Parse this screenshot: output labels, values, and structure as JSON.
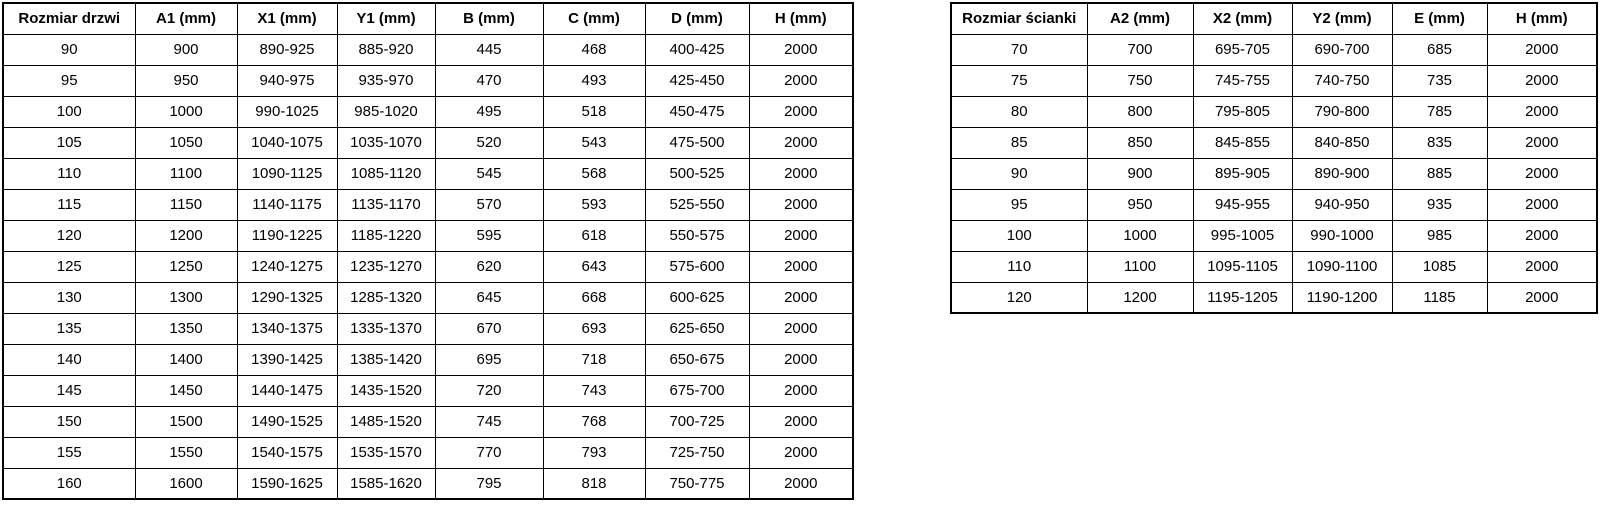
{
  "tables": {
    "doors": {
      "headers": [
        "Rozmiar drzwi",
        "A1 (mm)",
        "X1 (mm)",
        "Y1 (mm)",
        "B (mm)",
        "C (mm)",
        "D (mm)",
        "H (mm)"
      ],
      "rows": [
        [
          "90",
          "900",
          "890-925",
          "885-920",
          "445",
          "468",
          "400-425",
          "2000"
        ],
        [
          "95",
          "950",
          "940-975",
          "935-970",
          "470",
          "493",
          "425-450",
          "2000"
        ],
        [
          "100",
          "1000",
          "990-1025",
          "985-1020",
          "495",
          "518",
          "450-475",
          "2000"
        ],
        [
          "105",
          "1050",
          "1040-1075",
          "1035-1070",
          "520",
          "543",
          "475-500",
          "2000"
        ],
        [
          "110",
          "1100",
          "1090-1125",
          "1085-1120",
          "545",
          "568",
          "500-525",
          "2000"
        ],
        [
          "115",
          "1150",
          "1140-1175",
          "1135-1170",
          "570",
          "593",
          "525-550",
          "2000"
        ],
        [
          "120",
          "1200",
          "1190-1225",
          "1185-1220",
          "595",
          "618",
          "550-575",
          "2000"
        ],
        [
          "125",
          "1250",
          "1240-1275",
          "1235-1270",
          "620",
          "643",
          "575-600",
          "2000"
        ],
        [
          "130",
          "1300",
          "1290-1325",
          "1285-1320",
          "645",
          "668",
          "600-625",
          "2000"
        ],
        [
          "135",
          "1350",
          "1340-1375",
          "1335-1370",
          "670",
          "693",
          "625-650",
          "2000"
        ],
        [
          "140",
          "1400",
          "1390-1425",
          "1385-1420",
          "695",
          "718",
          "650-675",
          "2000"
        ],
        [
          "145",
          "1450",
          "1440-1475",
          "1435-1520",
          "720",
          "743",
          "675-700",
          "2000"
        ],
        [
          "150",
          "1500",
          "1490-1525",
          "1485-1520",
          "745",
          "768",
          "700-725",
          "2000"
        ],
        [
          "155",
          "1550",
          "1540-1575",
          "1535-1570",
          "770",
          "793",
          "725-750",
          "2000"
        ],
        [
          "160",
          "1600",
          "1590-1625",
          "1585-1620",
          "795",
          "818",
          "750-775",
          "2000"
        ]
      ]
    },
    "walls": {
      "headers": [
        "Rozmiar ścianki",
        "A2 (mm)",
        "X2 (mm)",
        "Y2 (mm)",
        "E (mm)",
        "H (mm)"
      ],
      "rows": [
        [
          "70",
          "700",
          "695-705",
          "690-700",
          "685",
          "2000"
        ],
        [
          "75",
          "750",
          "745-755",
          "740-750",
          "735",
          "2000"
        ],
        [
          "80",
          "800",
          "795-805",
          "790-800",
          "785",
          "2000"
        ],
        [
          "85",
          "850",
          "845-855",
          "840-850",
          "835",
          "2000"
        ],
        [
          "90",
          "900",
          "895-905",
          "890-900",
          "885",
          "2000"
        ],
        [
          "95",
          "950",
          "945-955",
          "940-950",
          "935",
          "2000"
        ],
        [
          "100",
          "1000",
          "995-1005",
          "990-1000",
          "985",
          "2000"
        ],
        [
          "110",
          "1100",
          "1095-1105",
          "1090-1100",
          "1085",
          "2000"
        ],
        [
          "120",
          "1200",
          "1195-1205",
          "1190-1200",
          "1185",
          "2000"
        ]
      ]
    }
  }
}
